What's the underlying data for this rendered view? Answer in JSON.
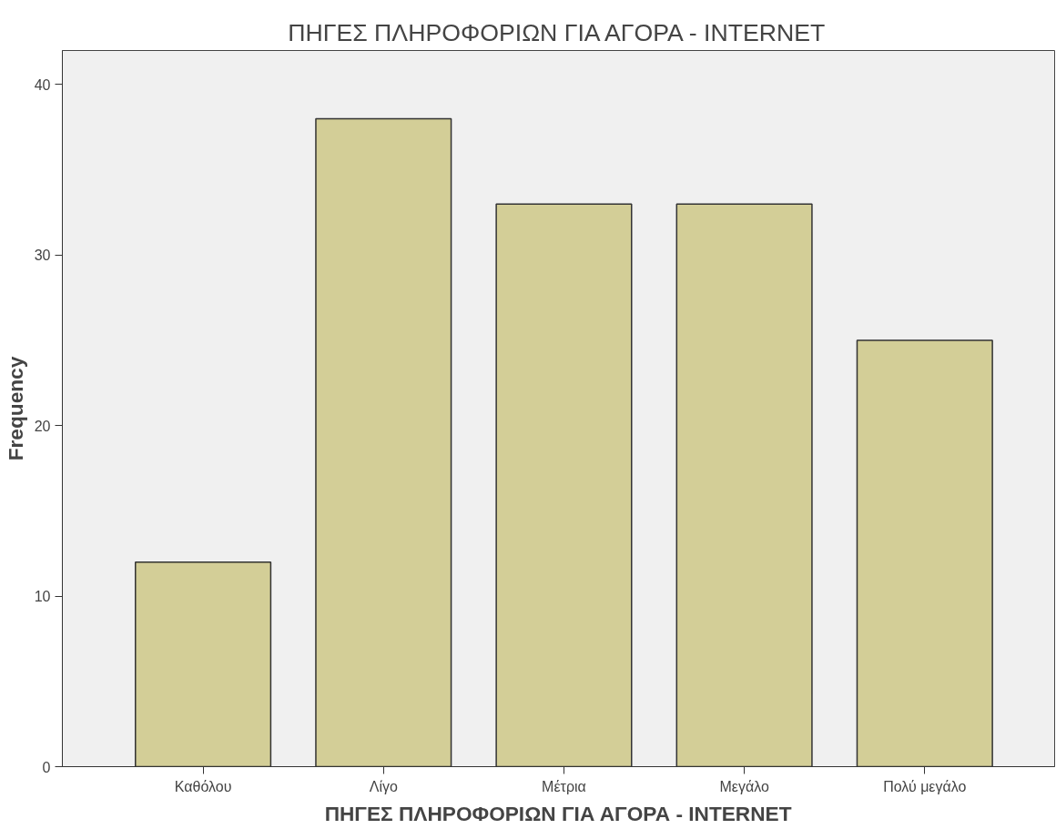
{
  "chart_data": {
    "type": "bar",
    "title": "ΠΗΓΕΣ ΠΛΗΡΟΦΟΡΙΩΝ ΓΙΑ ΑΓΟΡΑ - INTERNET",
    "xlabel": "ΠΗΓΕΣ ΠΛΗΡΟΦΟΡΙΩΝ ΓΙΑ ΑΓΟΡΑ - INTERNET",
    "ylabel": "Frequency",
    "categories": [
      "Καθόλου",
      "Λίγο",
      "Μέτρια",
      "Μεγάλο",
      "Πολύ μεγάλο"
    ],
    "values": [
      12,
      38,
      33,
      33,
      25
    ],
    "color": "#d3ce97",
    "ylim": [
      0,
      42
    ],
    "yticks": [
      0,
      10,
      20,
      30,
      40
    ],
    "grid": false
  }
}
